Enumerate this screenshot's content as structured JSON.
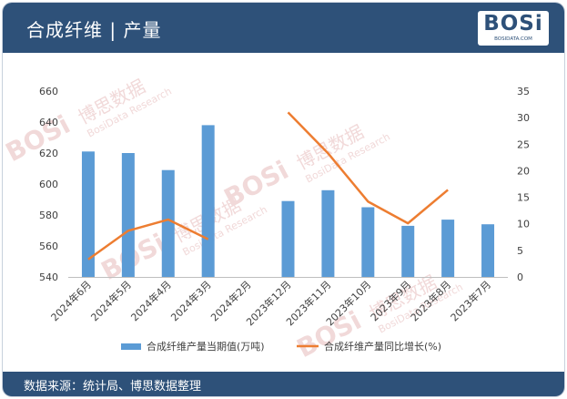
{
  "header": {
    "title": "合成纤维 | 产量"
  },
  "logo": {
    "text": "BOSi",
    "subtext": "BOSIDATA.COM"
  },
  "footer": {
    "source": "数据来源：统计局、博思数据整理"
  },
  "watermark": {
    "logo": "BOSi",
    "cn": "博思数据",
    "en": "BosiData Research"
  },
  "colors": {
    "header_bg": "#2e5179",
    "bar": "#5b9bd5",
    "line": "#ed7d31",
    "axis_text": "#404040"
  },
  "chart_data": {
    "type": "bar+line",
    "categories": [
      "2024年6月",
      "2024年5月",
      "2024年4月",
      "2024年3月",
      "2024年2月",
      "2023年12月",
      "2023年11月",
      "2023年10月",
      "2023年9月",
      "2023年8月",
      "2023年7月"
    ],
    "series": [
      {
        "name": "合成纤维产量当期值(万吨)",
        "type": "bar",
        "axis": "left",
        "values": [
          621,
          620,
          609,
          638,
          null,
          589,
          596,
          585,
          573,
          577,
          574
        ]
      },
      {
        "name": "合成纤维产量同比增长(%)",
        "type": "line",
        "axis": "right",
        "values": [
          3.3,
          8.7,
          10.8,
          7.1,
          null,
          31,
          23.3,
          14.2,
          10.1,
          16.4,
          null
        ]
      }
    ],
    "y_left": {
      "min": 540,
      "max": 660,
      "ticks": [
        "540",
        "560",
        "580",
        "600",
        "620",
        "640",
        "660"
      ]
    },
    "y_right": {
      "min": 0,
      "max": 35,
      "ticks": [
        "0",
        "5",
        "10",
        "15",
        "20",
        "25",
        "30",
        "35"
      ]
    },
    "grid": false,
    "legend_position": "bottom"
  }
}
